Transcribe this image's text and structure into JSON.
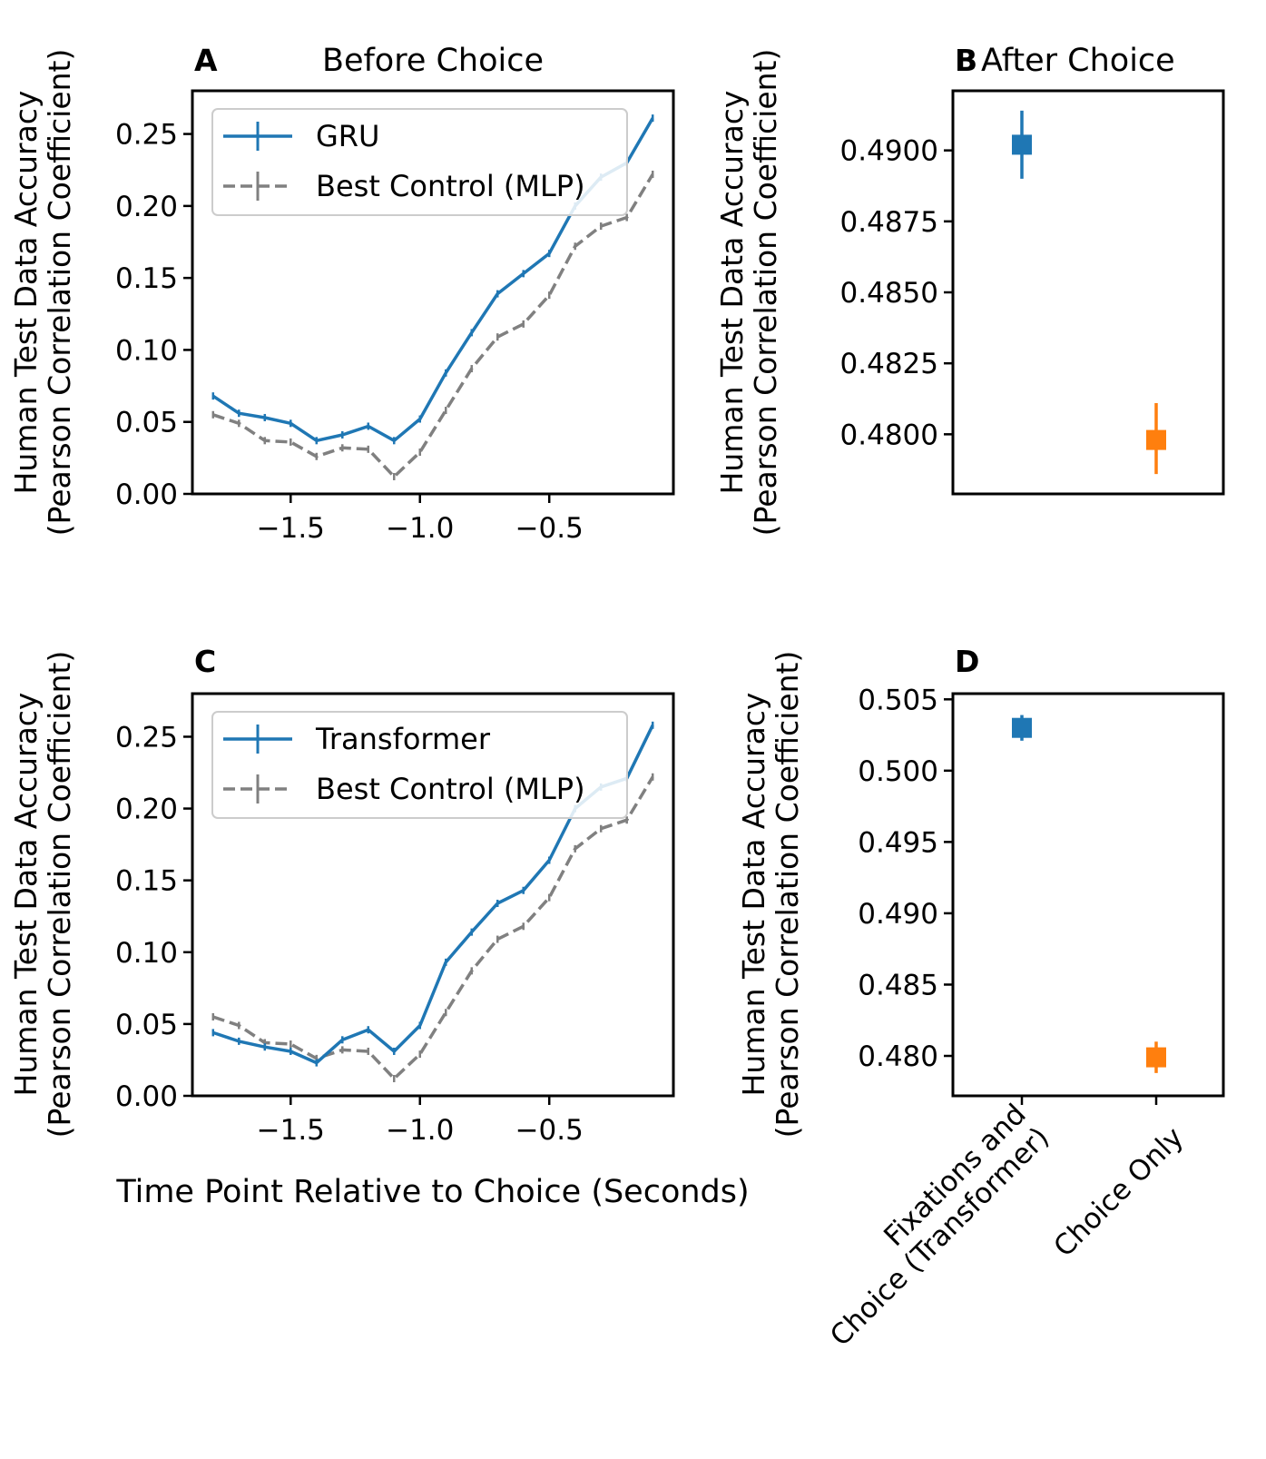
{
  "chart_data": [
    {
      "panel": "A",
      "type": "line",
      "title": "Before Choice",
      "xlabel": "",
      "ylabel": "Human Test Data Accuracy\n(Pearson Correlation Coefficient)",
      "xlim": [
        -1.88,
        -0.02
      ],
      "ylim": [
        0,
        0.28
      ],
      "xticks": [
        -1.5,
        -1.0,
        -0.5
      ],
      "xtick_labels": [
        "−1.5",
        "−1.0",
        "−0.5"
      ],
      "yticks": [
        0,
        0.05,
        0.1,
        0.15,
        0.2,
        0.25
      ],
      "ytick_labels": [
        "0.00",
        "0.05",
        "0.10",
        "0.15",
        "0.20",
        "0.25"
      ],
      "legend": "upper-left",
      "x": [
        -1.8,
        -1.7,
        -1.6,
        -1.5,
        -1.4,
        -1.3,
        -1.2,
        -1.1,
        -1.0,
        -0.9,
        -0.8,
        -0.7,
        -0.6,
        -0.5,
        -0.4,
        -0.3,
        -0.2,
        -0.1
      ],
      "series": [
        {
          "name": "GRU",
          "color": "#1f77b4",
          "style": "solid",
          "values": [
            0.068,
            0.056,
            0.053,
            0.049,
            0.037,
            0.041,
            0.047,
            0.037,
            0.052,
            0.084,
            0.112,
            0.139,
            0.153,
            0.167,
            0.2,
            0.22,
            0.23,
            0.261
          ]
        },
        {
          "name": "Best Control (MLP)",
          "color": "#808080",
          "style": "dashed",
          "values": [
            0.055,
            0.049,
            0.037,
            0.036,
            0.026,
            0.032,
            0.031,
            0.012,
            0.029,
            0.058,
            0.087,
            0.109,
            0.118,
            0.138,
            0.172,
            0.186,
            0.192,
            0.222
          ]
        }
      ]
    },
    {
      "panel": "B",
      "type": "scatter",
      "title": "After Choice",
      "ylabel": "Human Test Data Accuracy\n(Pearson Correlation Coefficient)",
      "ylim": [
        0.4779,
        0.4921
      ],
      "yticks": [
        0.48,
        0.4825,
        0.485,
        0.4875,
        0.49
      ],
      "ytick_labels": [
        "0.4800",
        "0.4825",
        "0.4850",
        "0.4875",
        "0.4900"
      ],
      "categories": [
        "Fixations and Choice (Transformer)",
        "Choice Only"
      ],
      "points": [
        {
          "value": 0.4902,
          "low": 0.489,
          "high": 0.4914,
          "color": "#1f77b4"
        },
        {
          "value": 0.4798,
          "low": 0.4786,
          "high": 0.4811,
          "color": "#ff7f0e"
        }
      ]
    },
    {
      "panel": "C",
      "type": "line",
      "title": "",
      "xlabel": "Time Point Relative to Choice (Seconds)",
      "ylabel": "Human Test Data Accuracy\n(Pearson Correlation Coefficient)",
      "xlim": [
        -1.88,
        -0.02
      ],
      "ylim": [
        0,
        0.28
      ],
      "xticks": [
        -1.5,
        -1.0,
        -0.5
      ],
      "xtick_labels": [
        "−1.5",
        "−1.0",
        "−0.5"
      ],
      "yticks": [
        0,
        0.05,
        0.1,
        0.15,
        0.2,
        0.25
      ],
      "ytick_labels": [
        "0.00",
        "0.05",
        "0.10",
        "0.15",
        "0.20",
        "0.25"
      ],
      "legend": "upper-left",
      "x": [
        -1.8,
        -1.7,
        -1.6,
        -1.5,
        -1.4,
        -1.3,
        -1.2,
        -1.1,
        -1.0,
        -0.9,
        -0.8,
        -0.7,
        -0.6,
        -0.5,
        -0.4,
        -0.3,
        -0.2,
        -0.1
      ],
      "series": [
        {
          "name": "Transformer",
          "color": "#1f77b4",
          "style": "solid",
          "values": [
            0.044,
            0.038,
            0.034,
            0.031,
            0.023,
            0.039,
            0.046,
            0.031,
            0.049,
            0.093,
            0.114,
            0.134,
            0.143,
            0.164,
            0.2,
            0.215,
            0.221,
            0.258
          ]
        },
        {
          "name": "Best Control (MLP)",
          "color": "#808080",
          "style": "dashed",
          "values": [
            0.055,
            0.049,
            0.037,
            0.036,
            0.026,
            0.032,
            0.031,
            0.012,
            0.029,
            0.058,
            0.087,
            0.109,
            0.118,
            0.138,
            0.172,
            0.186,
            0.192,
            0.222
          ]
        }
      ]
    },
    {
      "panel": "D",
      "type": "scatter",
      "title": "",
      "ylabel": "Human Test Data Accuracy\n(Pearson Correlation Coefficient)",
      "ylim": [
        0.4772,
        0.5054
      ],
      "yticks": [
        0.48,
        0.485,
        0.49,
        0.495,
        0.5,
        0.505
      ],
      "ytick_labels": [
        "0.480",
        "0.485",
        "0.490",
        "0.495",
        "0.500",
        "0.505"
      ],
      "categories": [
        "Fixations and\nChoice (Transformer)",
        "Choice Only"
      ],
      "points": [
        {
          "value": 0.503,
          "low": 0.5021,
          "high": 0.5039,
          "color": "#1f77b4"
        },
        {
          "value": 0.4799,
          "low": 0.4788,
          "high": 0.481,
          "color": "#ff7f0e"
        }
      ]
    }
  ]
}
